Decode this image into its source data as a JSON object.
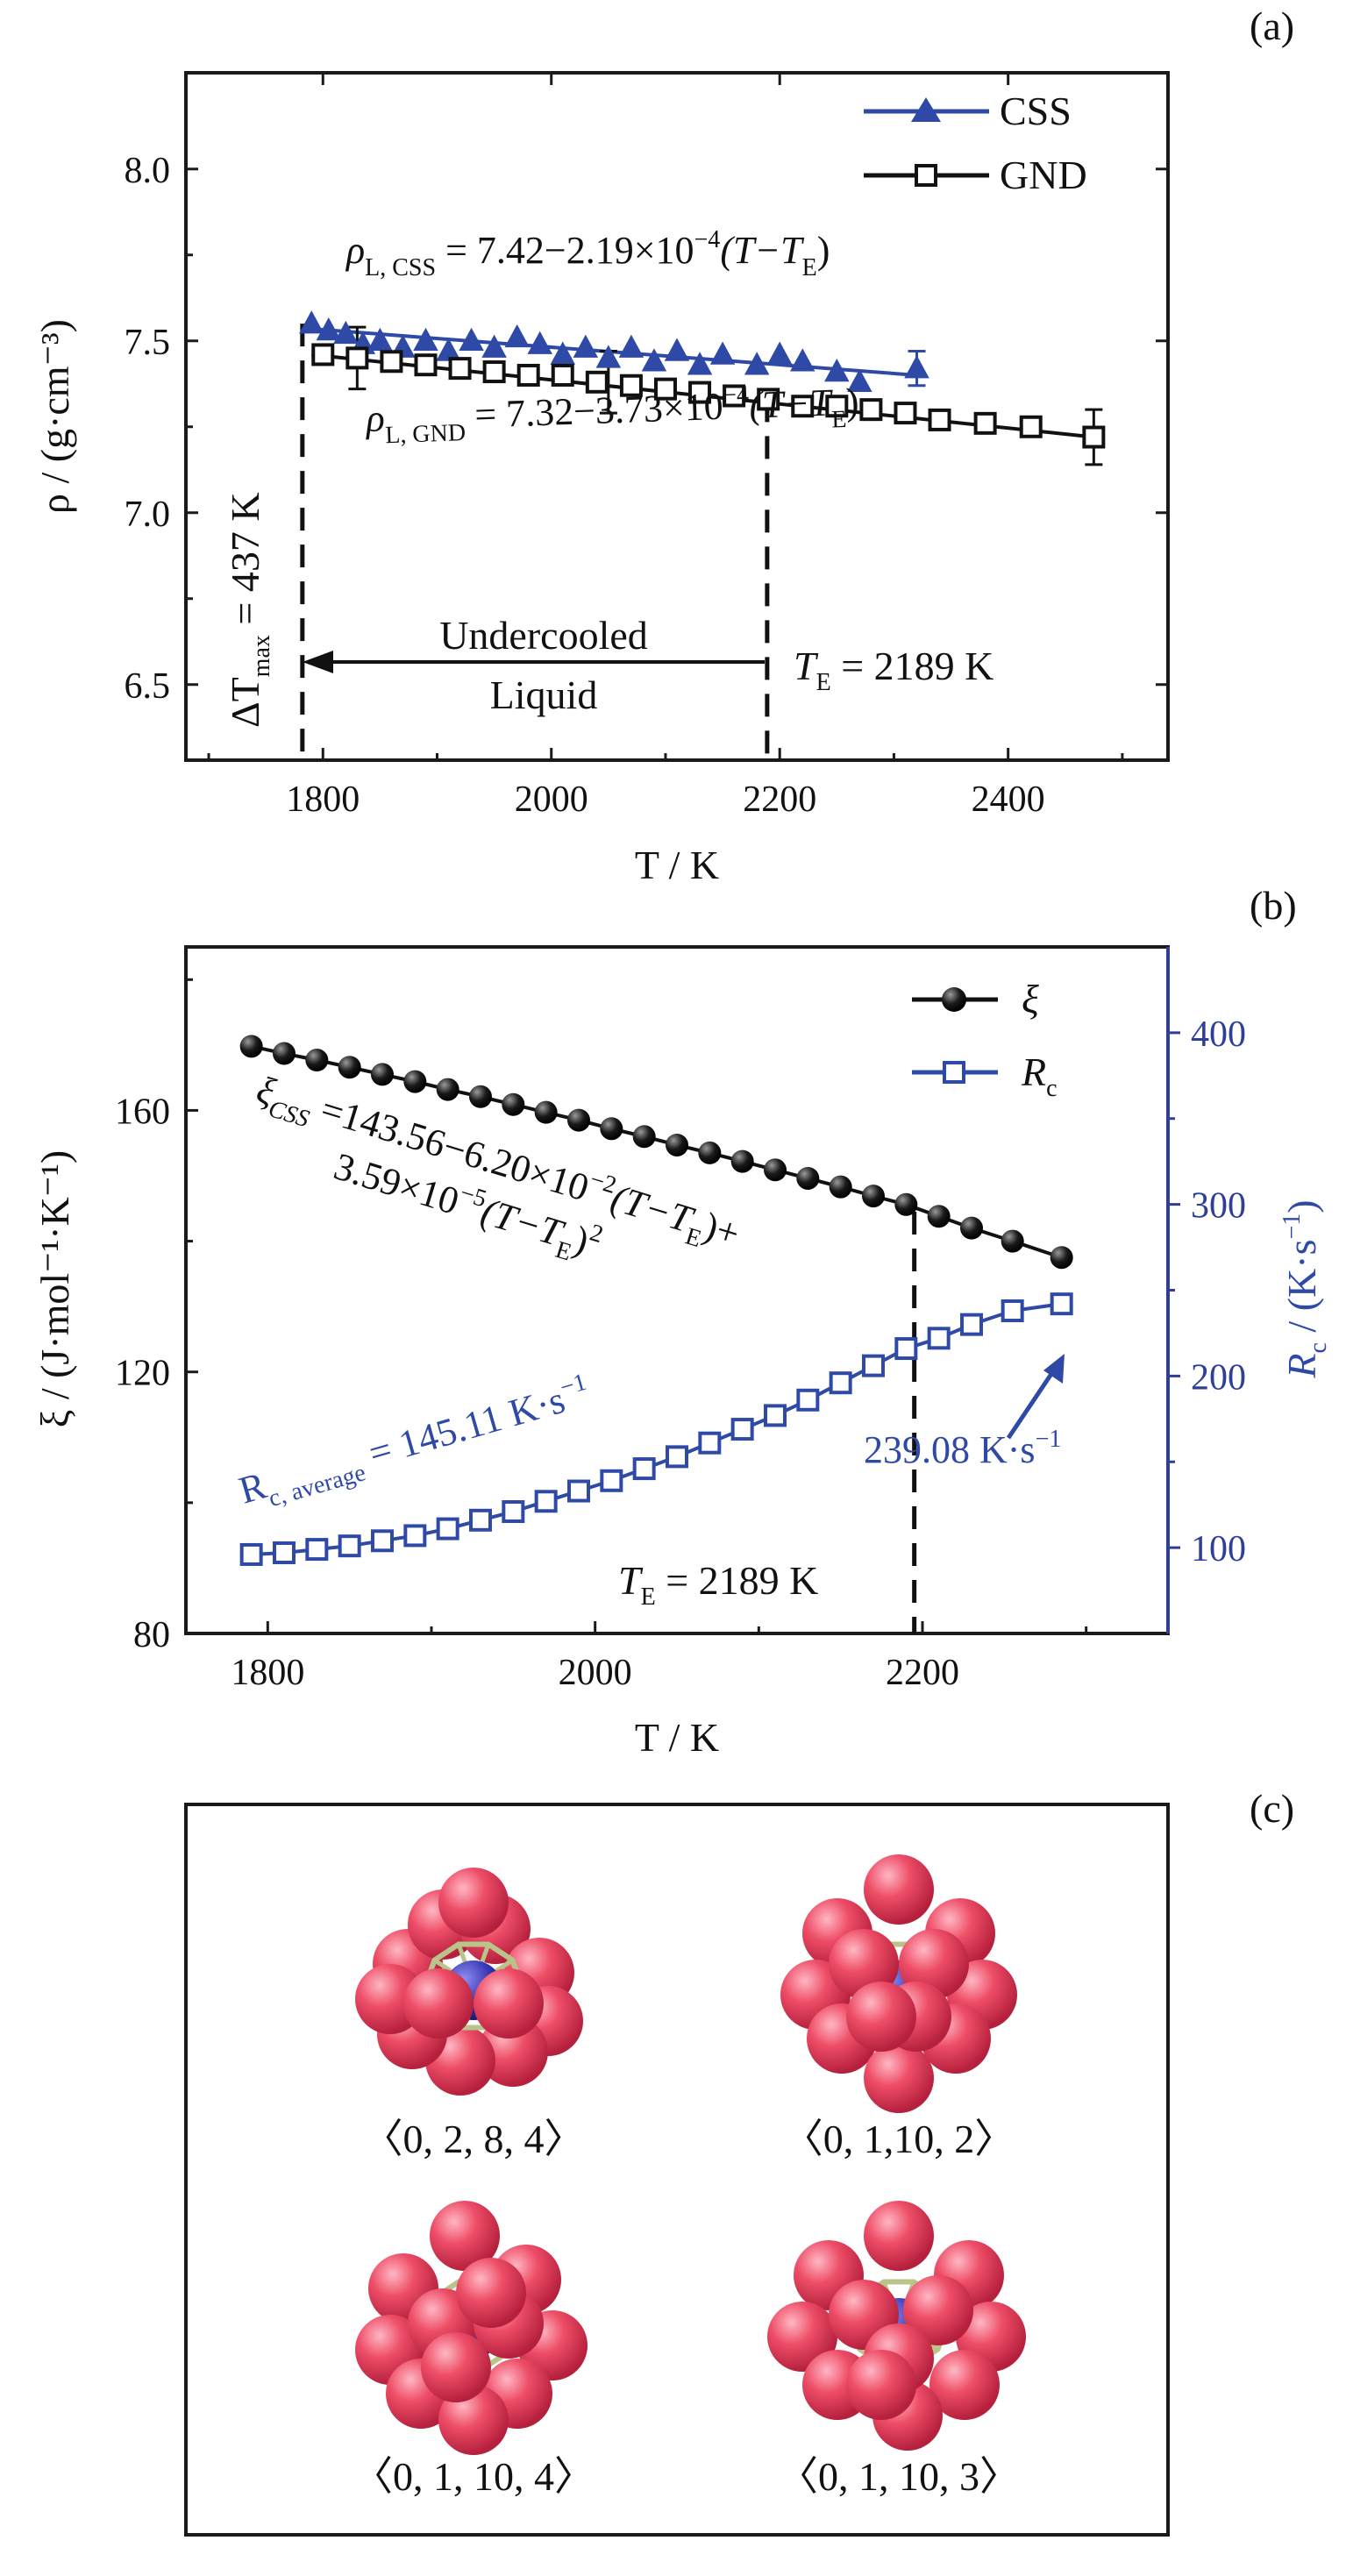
{
  "colors": {
    "css": "#2f4aa6",
    "gnd": "#111111",
    "xi": "#111111",
    "rc": "#2f4aa6",
    "atom_outer": "#e8435f",
    "atom_center": "#3a3ab0",
    "cage": "#b9c48a"
  },
  "panel_a": {
    "tag": "(a)",
    "chart_data": {
      "type": "scatter",
      "xlabel": "T / K",
      "ylabel": "ρ / (g·cm⁻³)",
      "xlim": [
        1680,
        2540
      ],
      "ylim": [
        6.28,
        8.28
      ],
      "x_ticks": [
        "1800",
        "2000",
        "2200",
        "2400"
      ],
      "y_ticks": [
        "6.5",
        "7.0",
        "7.5",
        "8.0"
      ],
      "legend": [
        {
          "name": "CSS",
          "marker": "filled-triangle"
        },
        {
          "name": "GND",
          "marker": "open-square"
        }
      ],
      "series": [
        {
          "name": "CSS",
          "x": [
            1790,
            1805,
            1820,
            1835,
            1850,
            1870,
            1890,
            1910,
            1930,
            1950,
            1970,
            1990,
            2010,
            2030,
            2050,
            2070,
            2090,
            2110,
            2130,
            2150,
            2180,
            2200,
            2220,
            2250,
            2270,
            2320
          ],
          "y": [
            7.55,
            7.53,
            7.52,
            7.49,
            7.5,
            7.48,
            7.5,
            7.47,
            7.5,
            7.48,
            7.51,
            7.49,
            7.46,
            7.48,
            7.45,
            7.48,
            7.44,
            7.47,
            7.43,
            7.46,
            7.43,
            7.46,
            7.44,
            7.41,
            7.38,
            7.42
          ],
          "error_bars": [
            {
              "x": 2320,
              "y": 7.42,
              "err": 0.05
            }
          ]
        },
        {
          "name": "GND",
          "x": [
            1800,
            1830,
            1860,
            1890,
            1920,
            1950,
            1980,
            2010,
            2040,
            2070,
            2100,
            2130,
            2160,
            2190,
            2220,
            2250,
            2280,
            2310,
            2340,
            2380,
            2420,
            2475
          ],
          "y": [
            7.46,
            7.45,
            7.44,
            7.43,
            7.42,
            7.41,
            7.4,
            7.4,
            7.38,
            7.37,
            7.36,
            7.35,
            7.34,
            7.33,
            7.31,
            7.31,
            7.3,
            7.29,
            7.27,
            7.26,
            7.25,
            7.22
          ],
          "error_bars": [
            {
              "x": 1830,
              "y": 7.45,
              "err": 0.09
            },
            {
              "x": 2050,
              "y": 7.38,
              "err": 0.09
            },
            {
              "x": 2475,
              "y": 7.22,
              "err": 0.08
            }
          ]
        }
      ],
      "fit_lines": [
        {
          "series": "CSS",
          "x": [
            1790,
            2320
          ],
          "y": [
            7.535,
            7.4
          ]
        },
        {
          "series": "GND",
          "x": [
            1790,
            2475
          ],
          "y": [
            7.46,
            7.22
          ]
        }
      ],
      "reference_lines": [
        {
          "x": 1782,
          "label": "ΔT",
          "label_sub": "max",
          "label_rest": " = 437 K"
        },
        {
          "x": 2189,
          "label": "T",
          "label_sub": "E",
          "label_rest": " = 2189 K"
        }
      ],
      "annotations": {
        "css_eq": {
          "rho": "ρ",
          "sub": "L, CSS",
          "body": " = 7.42−2.19×10",
          "exp": "−4",
          "tail": "(T−T",
          "tail_sub": "E",
          "close": ")"
        },
        "gnd_eq": {
          "rho": "ρ",
          "sub": "L, GND",
          "body": " = 7.32−3.73×10",
          "exp": "−4",
          "tail": "(T−T",
          "tail_sub": "E",
          "close": ")"
        },
        "arrow_line1": "Undercooled",
        "arrow_line2": "Liquid"
      }
    }
  },
  "panel_b": {
    "tag": "(b)",
    "chart_data": {
      "type": "line",
      "xlabel": "T / K",
      "ylabel_left": "ξ / (J·mol⁻¹·K⁻¹)",
      "ylabel_right": "R_c / (K·s⁻¹)",
      "xlim": [
        1750,
        2350
      ],
      "ylim_left": [
        80,
        185
      ],
      "ylim_right": [
        50,
        450
      ],
      "x_ticks": [
        "1800",
        "2000",
        "2200"
      ],
      "y_ticks_left": [
        "80",
        "120",
        "160"
      ],
      "y_ticks_right": [
        "100",
        "200",
        "300",
        "400"
      ],
      "legend": [
        {
          "name": "ξ",
          "marker": "filled-circle"
        },
        {
          "name": "R_c",
          "marker": "open-square"
        }
      ],
      "x": [
        1790,
        1810,
        1830,
        1850,
        1870,
        1890,
        1910,
        1930,
        1950,
        1970,
        1990,
        2010,
        2030,
        2050,
        2070,
        2090,
        2110,
        2130,
        2150,
        2170,
        2190,
        2210,
        2230,
        2255,
        2285
      ],
      "series": [
        {
          "name": "ξ",
          "axis": "left",
          "values": [
            169.8,
            168.7,
            167.7,
            166.6,
            165.5,
            164.4,
            163.2,
            162.1,
            160.9,
            159.7,
            158.5,
            157.2,
            156.0,
            154.7,
            153.5,
            152.2,
            150.9,
            149.6,
            148.3,
            146.9,
            145.6,
            143.8,
            142.0,
            140.0,
            137.5
          ]
        },
        {
          "name": "R_c",
          "axis": "right",
          "values": [
            96,
            97,
            99,
            101,
            104,
            107,
            111,
            116,
            121,
            127,
            133,
            139,
            146,
            153,
            161,
            169,
            177,
            186,
            196,
            206,
            216,
            222,
            230,
            238,
            242
          ]
        }
      ],
      "reference_lines": [
        {
          "x": 2195,
          "label": "T",
          "label_sub": "E",
          "label_rest": " = 2189 K"
        }
      ],
      "annotations": {
        "xi_eq_1": {
          "sym": "ξ",
          "sub": "CSS",
          "body": " =143.56−6.20×10",
          "exp": "−2",
          "tail": "(T−T",
          "tail_sub": "E",
          "close": ")+"
        },
        "xi_eq_2": {
          "body": "3.59×10",
          "exp": "−5",
          "tail": "(T−T",
          "tail_sub": "E",
          "close": ")",
          "exp2": "2"
        },
        "rc_avg": {
          "sym": "R",
          "sub": "c, average",
          "body": " = 145.11 K·s",
          "exp": "−1"
        },
        "rc_end": {
          "body": "239.08 K·s",
          "exp": "−1"
        }
      }
    }
  },
  "panel_c": {
    "tag": "(c)",
    "clusters": [
      {
        "label": "〈0, 2, 8, 4〉"
      },
      {
        "label": "〈0, 1,10, 2〉"
      },
      {
        "label": "〈0, 1, 10, 4〉"
      },
      {
        "label": "〈0, 1, 10, 3〉"
      }
    ]
  }
}
